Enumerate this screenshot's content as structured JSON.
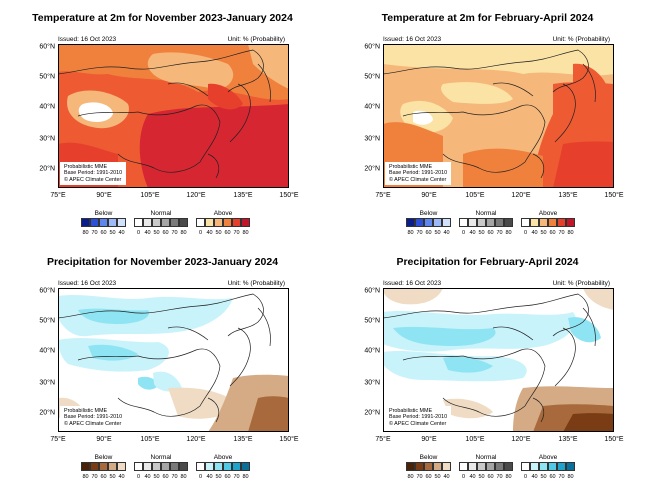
{
  "panels": [
    {
      "id": "temp-ndj",
      "title": "Temperature at 2m for November 2023-January 2024",
      "issued": "Issued: 16 Oct 2023",
      "unit": "Unit: % (Probability)",
      "info": [
        "Probabilistic MME",
        "Base Period: 1991-2010",
        "© APEC Climate Center"
      ],
      "legend": {
        "groups": [
          "Below",
          "Normal",
          "Above"
        ],
        "below_ticks": [
          "80",
          "70",
          "60",
          "50",
          "40"
        ],
        "normal_ticks": [
          "0",
          "40",
          "50",
          "60",
          "70",
          "80"
        ],
        "above_ticks": [
          "0",
          "40",
          "50",
          "60",
          "70",
          "80"
        ],
        "below_colors": [
          "#0a1d8c",
          "#2b4fd8",
          "#5f86ef",
          "#9db9f7",
          "#d2e1fb"
        ],
        "normal_colors": [
          "#ffffff",
          "#e9e9e9",
          "#c9c9c9",
          "#a5a5a5",
          "#7a7a7a",
          "#4a4a4a"
        ],
        "above_colors": [
          "#ffffff",
          "#fbe3a6",
          "#f6b77a",
          "#f0813d",
          "#e6402c",
          "#c4142a"
        ]
      }
    },
    {
      "id": "temp-fma",
      "title": "Temperature at 2m for February-April 2024",
      "issued": "Issued: 16 Oct 2023",
      "unit": "Unit: % (Probability)",
      "info": [
        "Probabilistic MME",
        "Base Period: 1991-2010",
        "© APEC Climate Center"
      ],
      "legend": {
        "groups": [
          "Below",
          "Normal",
          "Above"
        ],
        "below_ticks": [
          "80",
          "70",
          "60",
          "50",
          "40"
        ],
        "normal_ticks": [
          "0",
          "40",
          "50",
          "60",
          "70",
          "80"
        ],
        "above_ticks": [
          "0",
          "40",
          "50",
          "60",
          "70",
          "80"
        ],
        "below_colors": [
          "#0a1d8c",
          "#2b4fd8",
          "#5f86ef",
          "#9db9f7",
          "#d2e1fb"
        ],
        "normal_colors": [
          "#ffffff",
          "#e9e9e9",
          "#c9c9c9",
          "#a5a5a5",
          "#7a7a7a",
          "#4a4a4a"
        ],
        "above_colors": [
          "#ffffff",
          "#fbe3a6",
          "#f6b77a",
          "#f0813d",
          "#e6402c",
          "#c4142a"
        ]
      }
    },
    {
      "id": "prec-ndj",
      "title": "Precipitation for November 2023-January 2024",
      "issued": "Issued: 16 Oct 2023",
      "unit": "Unit: % (Probability)",
      "info": [
        "Probabilistic MME",
        "Base Period: 1991-2010",
        "© APEC Climate Center"
      ],
      "legend": {
        "groups": [
          "Below",
          "Normal",
          "Above"
        ],
        "below_ticks": [
          "80",
          "70",
          "60",
          "50",
          "40"
        ],
        "normal_ticks": [
          "0",
          "40",
          "50",
          "60",
          "70",
          "80"
        ],
        "above_ticks": [
          "0",
          "40",
          "50",
          "60",
          "70",
          "80"
        ],
        "below_colors": [
          "#4a2208",
          "#7a3c14",
          "#a86a3c",
          "#d5ab85",
          "#f0dcc4"
        ],
        "normal_colors": [
          "#ffffff",
          "#e9e9e9",
          "#c9c9c9",
          "#a5a5a5",
          "#7a7a7a",
          "#4a4a4a"
        ],
        "above_colors": [
          "#ffffff",
          "#c9f3fa",
          "#8fe4f3",
          "#4fc9e6",
          "#1fa2cc",
          "#0a6f9a"
        ]
      }
    },
    {
      "id": "prec-fma",
      "title": "Precipitation for February-April 2024",
      "issued": "Issued: 16 Oct 2023",
      "unit": "Unit: % (Probability)",
      "info": [
        "Probabilistic MME",
        "Base Period: 1991-2010",
        "© APEC Climate Center"
      ],
      "legend": {
        "groups": [
          "Below",
          "Normal",
          "Above"
        ],
        "below_ticks": [
          "80",
          "70",
          "60",
          "50",
          "40"
        ],
        "normal_ticks": [
          "0",
          "40",
          "50",
          "60",
          "70",
          "80"
        ],
        "above_ticks": [
          "0",
          "40",
          "50",
          "60",
          "70",
          "80"
        ],
        "below_colors": [
          "#4a2208",
          "#7a3c14",
          "#a86a3c",
          "#d5ab85",
          "#f0dcc4"
        ],
        "normal_colors": [
          "#ffffff",
          "#e9e9e9",
          "#c9c9c9",
          "#a5a5a5",
          "#7a7a7a",
          "#4a4a4a"
        ],
        "above_colors": [
          "#ffffff",
          "#c9f3fa",
          "#8fe4f3",
          "#4fc9e6",
          "#1fa2cc",
          "#0a6f9a"
        ]
      }
    }
  ],
  "axes": {
    "x_ticks": [
      "75°E",
      "90°E",
      "105°E",
      "120°E",
      "135°E",
      "150°E"
    ],
    "y_ticks": [
      "60°N",
      "50°N",
      "40°N",
      "30°N",
      "20°N"
    ]
  }
}
